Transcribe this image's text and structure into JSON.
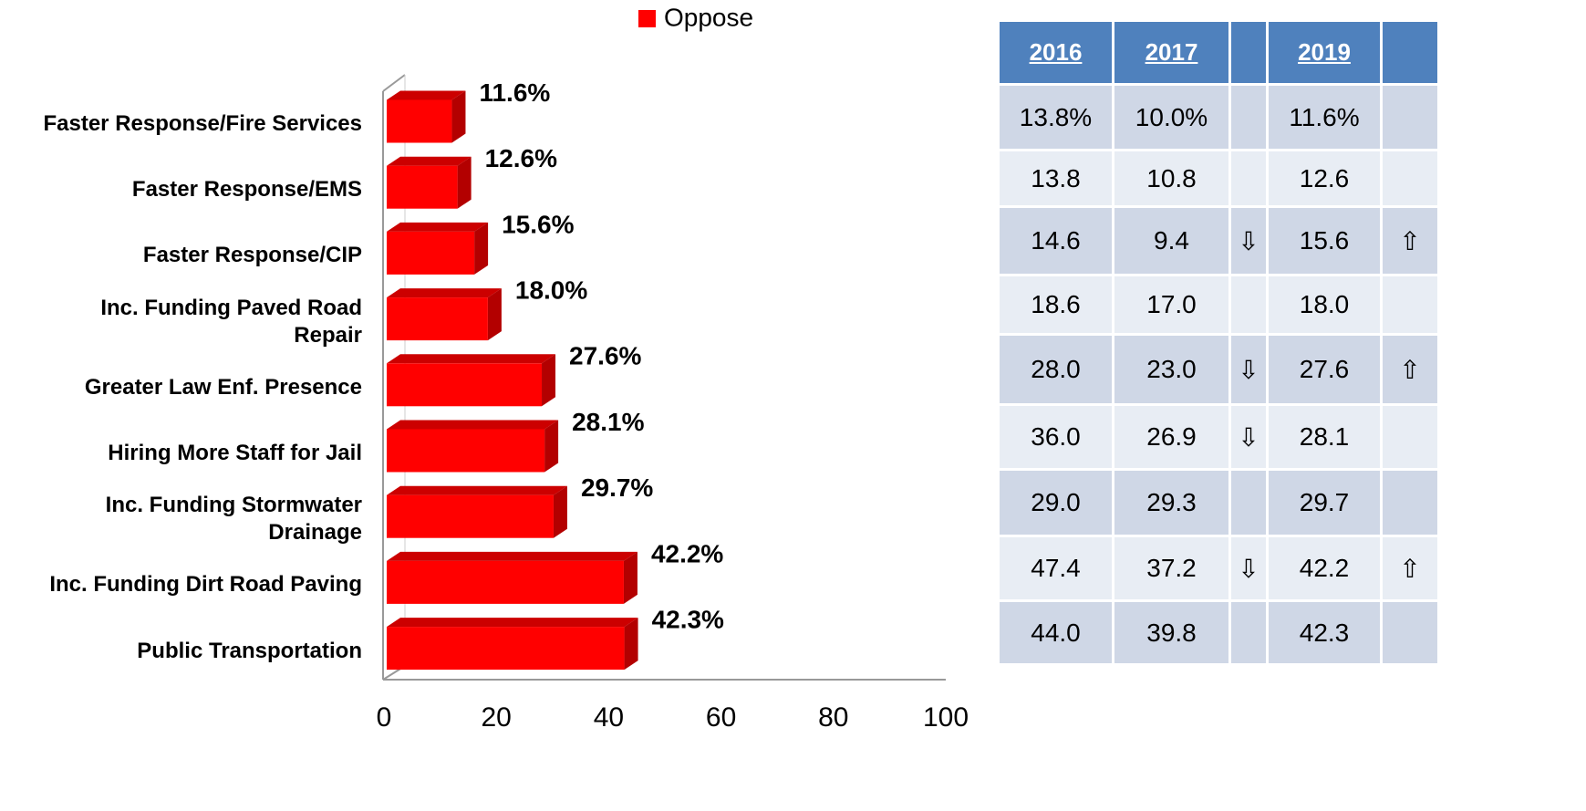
{
  "chart_data": {
    "type": "bar3d",
    "legend": "Oppose",
    "color": "#ff0000",
    "side_color": "#b30000",
    "top_color": "#cc0000",
    "categories": [
      "Faster Response/Fire Services",
      "Faster Response/EMS",
      "Faster Response/CIP",
      "Inc. Funding Paved Road\nRepair",
      "Greater Law Enf. Presence",
      "Hiring More Staff for Jail",
      "Inc. Funding Stormwater\nDrainage",
      "Inc. Funding Dirt Road Paving",
      "Public Transportation"
    ],
    "values": [
      11.6,
      12.6,
      15.6,
      18.0,
      27.6,
      28.1,
      29.7,
      42.2,
      42.3
    ],
    "value_labels": [
      "11.6%",
      "12.6%",
      "15.6%",
      "18.0%",
      "27.6%",
      "28.1%",
      "29.7%",
      "42.2%",
      "42.3%"
    ],
    "xlim": [
      0,
      100
    ],
    "xticks": [
      0,
      20,
      40,
      60,
      80,
      100
    ]
  },
  "table": {
    "header": [
      "2016",
      "2017",
      null,
      "2019",
      null
    ],
    "rows": [
      [
        "13.8%",
        "10.0%",
        null,
        "11.6%",
        null
      ],
      [
        "13.8",
        "10.8",
        null,
        "12.6",
        null
      ],
      [
        "14.6",
        "9.4",
        "⇩",
        "15.6",
        "⇧"
      ],
      [
        "18.6",
        "17.0",
        null,
        "18.0",
        null
      ],
      [
        "28.0",
        "23.0",
        "⇩",
        "27.6",
        "⇧"
      ],
      [
        "36.0",
        "26.9",
        "⇩",
        "28.1",
        null
      ],
      [
        "29.0",
        "29.3",
        null,
        "29.7",
        null
      ],
      [
        "47.4",
        "37.2",
        "⇩",
        "42.2",
        "⇧"
      ],
      [
        "44.0",
        "39.8",
        null,
        "42.3",
        null
      ]
    ]
  }
}
